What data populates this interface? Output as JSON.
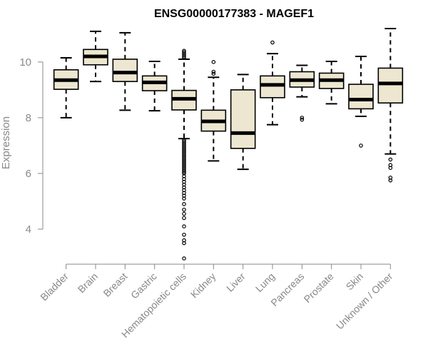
{
  "chart_data": {
    "type": "boxplot",
    "title": "ENSG00000177383 - MAGEF1",
    "xlabel": "",
    "ylabel": "Expression",
    "ylim": [
      3,
      11.2
    ],
    "yticks": [
      4,
      6,
      8,
      10
    ],
    "box_fill": "#ede7d1",
    "categories": [
      "Bladder",
      "Brain",
      "Breast",
      "Gastric",
      "Hematopoietic cells",
      "Kidney",
      "Liver",
      "Lung",
      "Pancreas",
      "Prostate",
      "Skin",
      "Unknown / Other"
    ],
    "boxes": [
      {
        "name": "Bladder",
        "whisker_low": 8.0,
        "q1": 9.02,
        "median": 9.35,
        "q3": 9.72,
        "whisker_high": 10.15,
        "outliers": []
      },
      {
        "name": "Brain",
        "whisker_low": 9.3,
        "q1": 9.9,
        "median": 10.2,
        "q3": 10.45,
        "whisker_high": 11.1,
        "outliers": []
      },
      {
        "name": "Breast",
        "whisker_low": 8.27,
        "q1": 9.3,
        "median": 9.62,
        "q3": 10.1,
        "whisker_high": 11.05,
        "outliers": []
      },
      {
        "name": "Gastric",
        "whisker_low": 8.25,
        "q1": 8.97,
        "median": 9.27,
        "q3": 9.5,
        "whisker_high": 10.02,
        "outliers": []
      },
      {
        "name": "Hematopoietic cells",
        "whisker_low": 7.25,
        "q1": 8.28,
        "median": 8.68,
        "q3": 8.98,
        "whisker_high": 10.1,
        "outliers": [
          10.4,
          10.35,
          10.3,
          10.25,
          10.2,
          10.15,
          7.2,
          7.15,
          7.1,
          7.05,
          7.0,
          6.95,
          6.9,
          6.85,
          6.8,
          6.75,
          6.7,
          6.65,
          6.6,
          6.55,
          6.5,
          6.45,
          6.4,
          6.35,
          6.3,
          6.25,
          6.2,
          6.15,
          6.1,
          6.05,
          6.0,
          5.9,
          5.8,
          5.7,
          5.6,
          5.5,
          5.4,
          5.3,
          5.2,
          5.1,
          4.9,
          4.7,
          4.55,
          4.4,
          4.1,
          3.8,
          3.6,
          3.5,
          2.95
        ]
      },
      {
        "name": "Kidney",
        "whisker_low": 6.45,
        "q1": 7.52,
        "median": 7.87,
        "q3": 8.27,
        "whisker_high": 9.45,
        "outliers": [
          10.0,
          9.65,
          9.58
        ]
      },
      {
        "name": "Liver",
        "whisker_low": 6.15,
        "q1": 6.9,
        "median": 7.45,
        "q3": 9.0,
        "whisker_high": 9.55,
        "outliers": []
      },
      {
        "name": "Lung",
        "whisker_low": 7.75,
        "q1": 8.72,
        "median": 9.18,
        "q3": 9.5,
        "whisker_high": 10.3,
        "outliers": [
          10.7
        ]
      },
      {
        "name": "Pancreas",
        "whisker_low": 8.75,
        "q1": 9.1,
        "median": 9.35,
        "q3": 9.65,
        "whisker_high": 9.88,
        "outliers": [
          8.0,
          7.93
        ]
      },
      {
        "name": "Prostate",
        "whisker_low": 8.5,
        "q1": 9.05,
        "median": 9.35,
        "q3": 9.6,
        "whisker_high": 10.02,
        "outliers": []
      },
      {
        "name": "Skin",
        "whisker_low": 8.05,
        "q1": 8.32,
        "median": 8.65,
        "q3": 9.2,
        "whisker_high": 10.2,
        "outliers": [
          7.0
        ]
      },
      {
        "name": "Unknown / Other",
        "whisker_low": 6.7,
        "q1": 8.53,
        "median": 9.23,
        "q3": 9.78,
        "whisker_high": 11.2,
        "outliers": [
          6.5,
          6.3,
          6.2,
          5.85,
          5.75
        ]
      }
    ]
  }
}
